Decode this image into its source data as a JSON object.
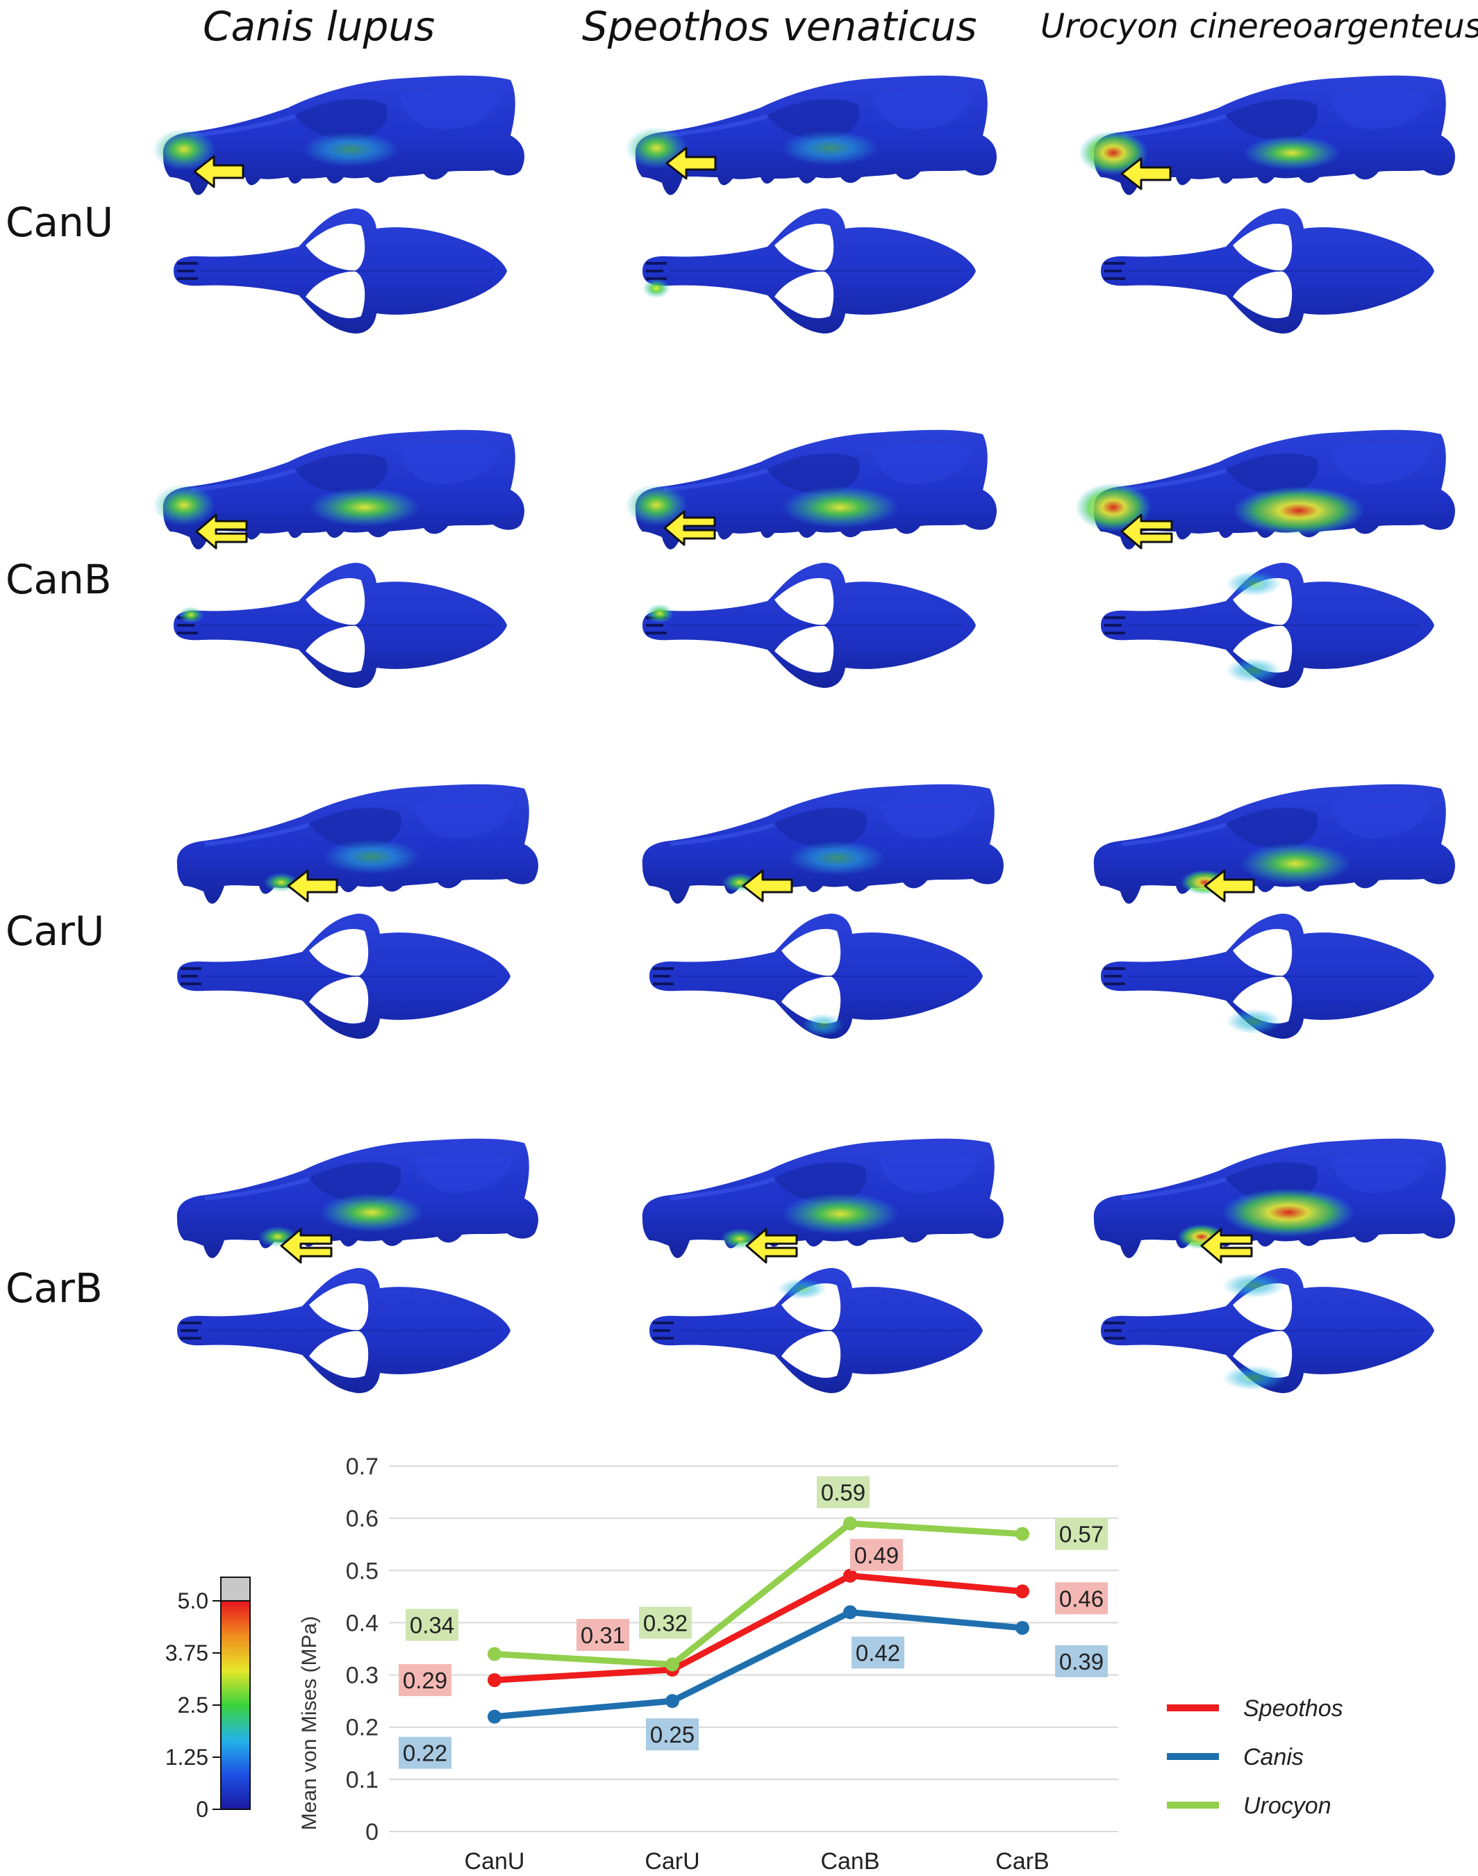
{
  "figure": {
    "species_titles": [
      "Canis lupus",
      "Speothos venaticus",
      "Urocyon cinereoargenteus"
    ],
    "row_labels": [
      "CanU",
      "CanB",
      "CarU",
      "CarB"
    ],
    "colors": {
      "skull_base": "#1f33c9",
      "skull_dark": "#101e96",
      "stress_cyan": "#28b6df",
      "stress_green": "#4ed241",
      "stress_yellow": "#eaee30",
      "stress_red": "#e32a18",
      "arrow_fill": "#fff23a"
    },
    "arrow_type_by_row": [
      "single",
      "double",
      "single",
      "double"
    ]
  },
  "colorbar": {
    "labels": [
      "5.0",
      "3.75",
      "2.5",
      "1.25",
      "0"
    ],
    "values": [
      5.0,
      3.75,
      2.5,
      1.25,
      0
    ],
    "overflow_color": "#c8c8c8",
    "gradient": [
      "#1a1aa0",
      "#1e50e6",
      "#24b4e6",
      "#3cd23c",
      "#e6e628",
      "#f08c1e",
      "#e6141e"
    ]
  },
  "chart_data": {
    "type": "line",
    "categories": [
      "CanU",
      "CarU",
      "CanB",
      "CarB"
    ],
    "ylabel": "Mean von Mises (MPa)",
    "ylim": [
      0,
      0.7
    ],
    "yticks": [
      "0",
      "0.1",
      "0.2",
      "0.3",
      "0.4",
      "0.5",
      "0.6",
      "0.7"
    ],
    "grid": true,
    "legend_position": "bottom-right",
    "series": [
      {
        "name": "Speothos",
        "color": "#ee1c1c",
        "label_bg": "#f4b8b4",
        "values": [
          0.29,
          0.31,
          0.49,
          0.46
        ],
        "labels": [
          "0.29",
          "0.31",
          "0.49",
          "0.46"
        ]
      },
      {
        "name": "Canis",
        "color": "#1f6fae",
        "label_bg": "#a9cbe4",
        "values": [
          0.22,
          0.25,
          0.42,
          0.39
        ],
        "labels": [
          "0.22",
          "0.25",
          "0.42",
          "0.39"
        ]
      },
      {
        "name": "Urocyon",
        "color": "#92cf4c",
        "label_bg": "#cfe6b0",
        "values": [
          0.34,
          0.32,
          0.59,
          0.57
        ],
        "labels": [
          "0.34",
          "0.32",
          "0.59",
          "0.57"
        ]
      }
    ]
  }
}
